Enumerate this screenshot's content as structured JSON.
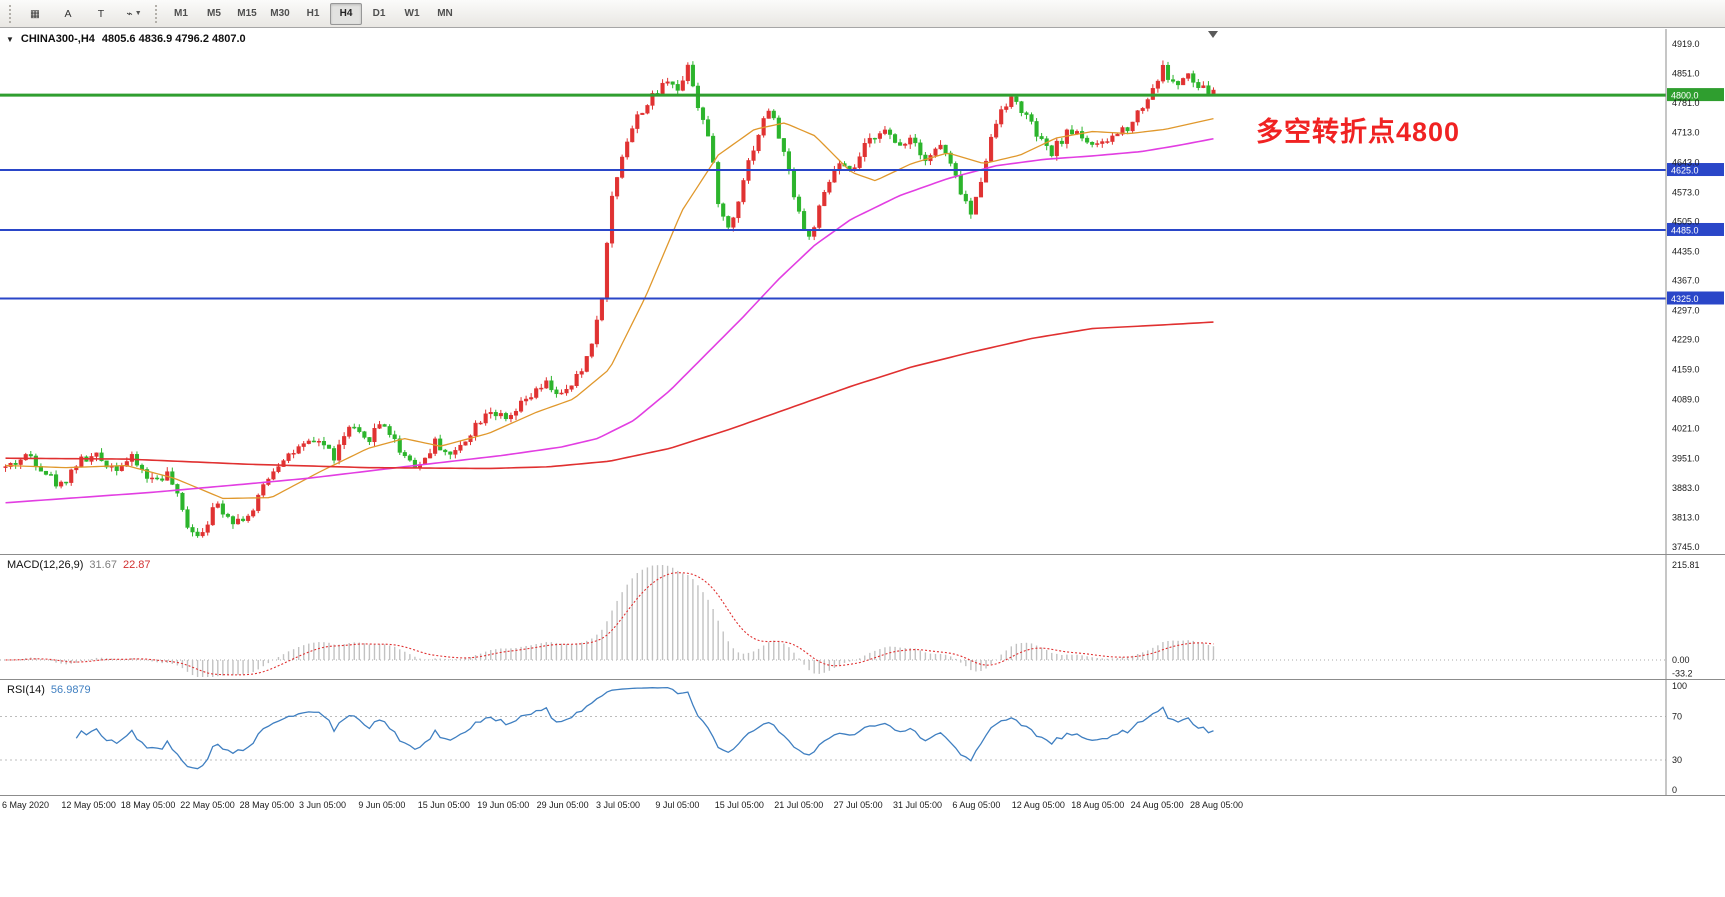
{
  "toolbar": {
    "tools": [
      {
        "name": "template-grid",
        "glyph": "▦"
      },
      {
        "name": "annotation-a",
        "glyph": "A"
      },
      {
        "name": "text-tool",
        "glyph": "T"
      },
      {
        "name": "drawing-tools",
        "glyph": "⌁",
        "has_dropdown": true
      }
    ],
    "timeframes": [
      "M1",
      "M5",
      "M15",
      "M30",
      "H1",
      "H4",
      "D1",
      "W1",
      "MN"
    ],
    "active_timeframe": "H4"
  },
  "chart": {
    "title_symbol": "CHINA300-,H4",
    "title_ohlc": "4805.6 4836.9 4796.2 4807.0",
    "annotation_text": "多空转折点4800",
    "dropdown_glyph": "▼"
  },
  "macd": {
    "label": "MACD(12,26,9)",
    "value_main": "31.67",
    "value_signal": "22.87",
    "axis": [
      "215.81",
      "0.00",
      "-33.2"
    ]
  },
  "rsi": {
    "label": "RSI(14)",
    "value": "56.9879",
    "axis": [
      "100",
      "70",
      "30",
      "0"
    ],
    "levels": [
      70,
      30
    ]
  },
  "chart_data": {
    "type": "candlestick",
    "symbol": "CHINA300-",
    "timeframe": "H4",
    "ohlc_current": {
      "open": 4805.6,
      "high": 4836.9,
      "low": 4796.2,
      "close": 4807.0
    },
    "price_range": {
      "min": 3733,
      "max": 4952
    },
    "price_axis_ticks": [
      "4919.0",
      "4851.0",
      "4781.0",
      "4713.0",
      "4643.0",
      "4573.0",
      "4505.0",
      "4435.0",
      "4367.0",
      "4297.0",
      "4229.0",
      "4159.0",
      "4089.0",
      "4021.0",
      "3951.0",
      "3883.0",
      "3813.0",
      "3745.0"
    ],
    "time_axis_ticks": [
      "6 May 2020",
      "12 May 05:00",
      "18 May 05:00",
      "22 May 05:00",
      "28 May 05:00",
      "3 Jun 05:00",
      "9 Jun 05:00",
      "15 Jun 05:00",
      "19 Jun 05:00",
      "29 Jun 05:00",
      "3 Jul 05:00",
      "9 Jul 05:00",
      "15 Jul 05:00",
      "21 Jul 05:00",
      "27 Jul 05:00",
      "31 Jul 05:00",
      "6 Aug 05:00",
      "12 Aug 05:00",
      "18 Aug 05:00",
      "24 Aug 05:00",
      "28 Aug 05:00"
    ],
    "hlines": [
      {
        "price": 4800.0,
        "label": "4800.0",
        "color": "#2f9e2f",
        "width": 3
      },
      {
        "price": 4625.0,
        "label": "4625.0",
        "color": "#2a46c8",
        "width": 2
      },
      {
        "price": 4485.0,
        "label": "4485.0",
        "color": "#2a46c8",
        "width": 2
      },
      {
        "price": 4325.0,
        "label": "4325.0",
        "color": "#2a46c8",
        "width": 2
      }
    ],
    "colors": {
      "bull": "#e03232",
      "bear": "#2cb42c",
      "ma_fast": "#e0982c",
      "ma_mid": "#e23ee2",
      "ma_slow": "#e03030",
      "macd_hist": "#c2c2c2",
      "macd_signal": "#e03030",
      "rsi_line": "#3f7fc1"
    },
    "candles_n": 240,
    "seed": 42,
    "noise": 13,
    "price_path_anchors": [
      [
        0.0,
        3930
      ],
      [
        0.02,
        3960
      ],
      [
        0.045,
        3885
      ],
      [
        0.06,
        3945
      ],
      [
        0.075,
        3955
      ],
      [
        0.09,
        3930
      ],
      [
        0.105,
        3950
      ],
      [
        0.12,
        3900
      ],
      [
        0.135,
        3915
      ],
      [
        0.15,
        3800
      ],
      [
        0.16,
        3772
      ],
      [
        0.175,
        3845
      ],
      [
        0.19,
        3805
      ],
      [
        0.205,
        3825
      ],
      [
        0.215,
        3900
      ],
      [
        0.23,
        3955
      ],
      [
        0.245,
        3975
      ],
      [
        0.26,
        3995
      ],
      [
        0.272,
        3955
      ],
      [
        0.285,
        4025
      ],
      [
        0.298,
        3990
      ],
      [
        0.312,
        4040
      ],
      [
        0.328,
        3965
      ],
      [
        0.342,
        3932
      ],
      [
        0.356,
        3990
      ],
      [
        0.37,
        3955
      ],
      [
        0.385,
        4015
      ],
      [
        0.4,
        4070
      ],
      [
        0.415,
        4035
      ],
      [
        0.43,
        4085
      ],
      [
        0.448,
        4125
      ],
      [
        0.462,
        4095
      ],
      [
        0.478,
        4160
      ],
      [
        0.492,
        4290
      ],
      [
        0.502,
        4560
      ],
      [
        0.512,
        4680
      ],
      [
        0.525,
        4760
      ],
      [
        0.538,
        4800
      ],
      [
        0.55,
        4845
      ],
      [
        0.558,
        4805
      ],
      [
        0.565,
        4880
      ],
      [
        0.572,
        4790
      ],
      [
        0.582,
        4700
      ],
      [
        0.592,
        4520
      ],
      [
        0.6,
        4485
      ],
      [
        0.612,
        4620
      ],
      [
        0.622,
        4700
      ],
      [
        0.632,
        4770
      ],
      [
        0.642,
        4690
      ],
      [
        0.652,
        4580
      ],
      [
        0.664,
        4455
      ],
      [
        0.676,
        4550
      ],
      [
        0.688,
        4640
      ],
      [
        0.7,
        4615
      ],
      [
        0.712,
        4680
      ],
      [
        0.725,
        4725
      ],
      [
        0.738,
        4680
      ],
      [
        0.75,
        4705
      ],
      [
        0.762,
        4650
      ],
      [
        0.775,
        4685
      ],
      [
        0.788,
        4595
      ],
      [
        0.8,
        4515
      ],
      [
        0.812,
        4660
      ],
      [
        0.825,
        4780
      ],
      [
        0.835,
        4790
      ],
      [
        0.845,
        4750
      ],
      [
        0.855,
        4700
      ],
      [
        0.865,
        4660
      ],
      [
        0.875,
        4700
      ],
      [
        0.885,
        4720
      ],
      [
        0.895,
        4695
      ],
      [
        0.905,
        4675
      ],
      [
        0.915,
        4700
      ],
      [
        0.93,
        4730
      ],
      [
        0.945,
        4790
      ],
      [
        0.958,
        4862
      ],
      [
        0.968,
        4820
      ],
      [
        0.978,
        4845
      ],
      [
        0.988,
        4815
      ],
      [
        1.0,
        4807
      ]
    ],
    "ma_fast_anchors": [
      [
        0.0,
        3935
      ],
      [
        0.05,
        3930
      ],
      [
        0.1,
        3935
      ],
      [
        0.14,
        3905
      ],
      [
        0.18,
        3858
      ],
      [
        0.22,
        3860
      ],
      [
        0.26,
        3920
      ],
      [
        0.3,
        3975
      ],
      [
        0.33,
        3998
      ],
      [
        0.36,
        3980
      ],
      [
        0.4,
        4010
      ],
      [
        0.44,
        4060
      ],
      [
        0.47,
        4090
      ],
      [
        0.5,
        4160
      ],
      [
        0.53,
        4330
      ],
      [
        0.56,
        4530
      ],
      [
        0.59,
        4660
      ],
      [
        0.62,
        4720
      ],
      [
        0.645,
        4735
      ],
      [
        0.67,
        4705
      ],
      [
        0.7,
        4620
      ],
      [
        0.72,
        4600
      ],
      [
        0.75,
        4640
      ],
      [
        0.78,
        4665
      ],
      [
        0.81,
        4640
      ],
      [
        0.84,
        4660
      ],
      [
        0.87,
        4700
      ],
      [
        0.9,
        4715
      ],
      [
        0.93,
        4710
      ],
      [
        0.96,
        4720
      ],
      [
        1.0,
        4745
      ]
    ],
    "ma_mid_anchors": [
      [
        0.0,
        3848
      ],
      [
        0.12,
        3872
      ],
      [
        0.2,
        3892
      ],
      [
        0.25,
        3905
      ],
      [
        0.33,
        3932
      ],
      [
        0.41,
        3958
      ],
      [
        0.46,
        3978
      ],
      [
        0.49,
        3998
      ],
      [
        0.52,
        4040
      ],
      [
        0.55,
        4110
      ],
      [
        0.58,
        4195
      ],
      [
        0.61,
        4280
      ],
      [
        0.64,
        4370
      ],
      [
        0.67,
        4450
      ],
      [
        0.7,
        4510
      ],
      [
        0.74,
        4565
      ],
      [
        0.78,
        4605
      ],
      [
        0.82,
        4635
      ],
      [
        0.86,
        4650
      ],
      [
        0.9,
        4658
      ],
      [
        0.94,
        4668
      ],
      [
        0.97,
        4682
      ],
      [
        1.0,
        4698
      ]
    ],
    "ma_slow_anchors": [
      [
        0.0,
        3952
      ],
      [
        0.1,
        3950
      ],
      [
        0.2,
        3938
      ],
      [
        0.3,
        3930
      ],
      [
        0.4,
        3928
      ],
      [
        0.45,
        3932
      ],
      [
        0.5,
        3945
      ],
      [
        0.55,
        3975
      ],
      [
        0.6,
        4020
      ],
      [
        0.65,
        4070
      ],
      [
        0.7,
        4120
      ],
      [
        0.75,
        4165
      ],
      [
        0.8,
        4200
      ],
      [
        0.85,
        4232
      ],
      [
        0.9,
        4255
      ],
      [
        0.95,
        4262
      ],
      [
        1.0,
        4270
      ]
    ],
    "macd_params": {
      "fast": 12,
      "slow": 26,
      "signal": 9
    },
    "macd_axis_max": 215.81,
    "rsi_period": 14
  }
}
